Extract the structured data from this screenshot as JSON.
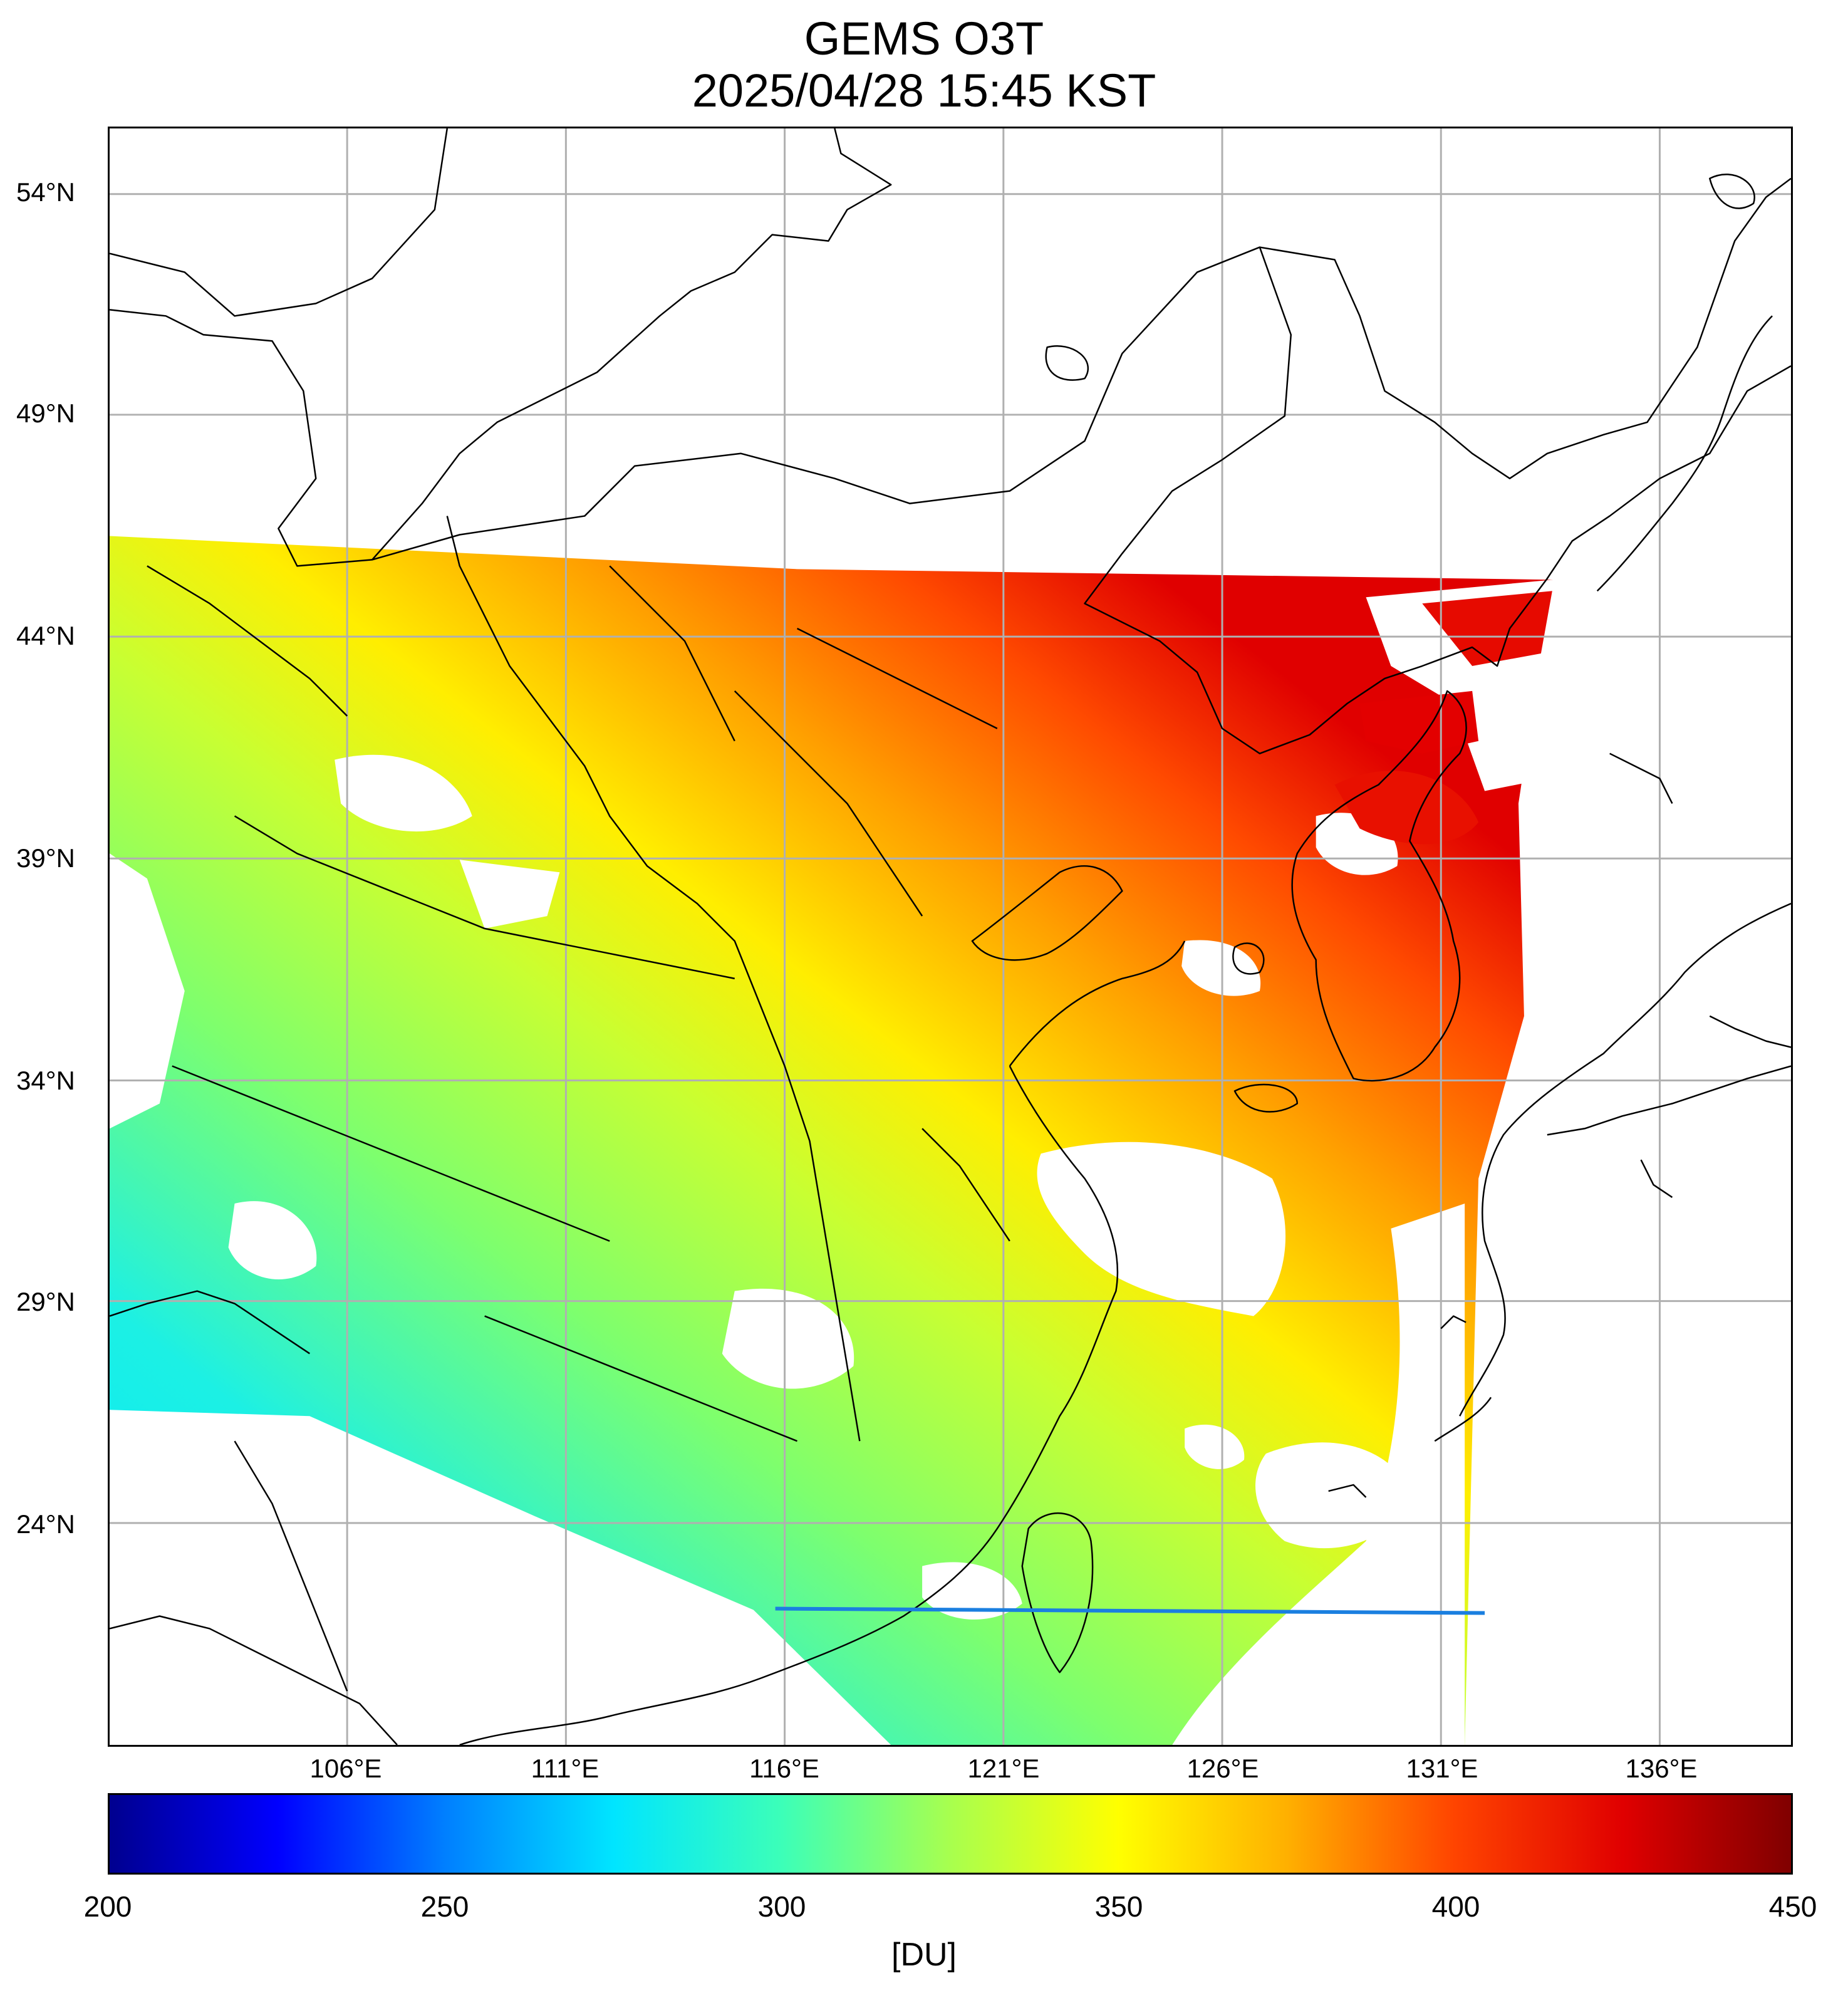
{
  "title_line1": "GEMS O3T",
  "title_line2": "2025/04/28 15:45 KST",
  "lat_labels": [
    "54°N",
    "49°N",
    "44°N",
    "39°N",
    "34°N",
    "29°N",
    "24°N"
  ],
  "lon_labels": [
    "106°E",
    "111°E",
    "116°E",
    "121°E",
    "126°E",
    "131°E",
    "136°E"
  ],
  "colorbar": {
    "ticks": [
      "200",
      "250",
      "300",
      "350",
      "400",
      "450"
    ],
    "unit": "[DU]",
    "min": 200,
    "max": 450,
    "colormap": "jet",
    "colors": [
      "#00008f",
      "#0000ff",
      "#0080ff",
      "#00e5ff",
      "#3cffb8",
      "#a8ff4e",
      "#ffff00",
      "#ffb000",
      "#ff4400",
      "#e00000",
      "#800000"
    ]
  },
  "map": {
    "projection": "lat-lon",
    "lat_range": [
      20.5,
      55.5
    ],
    "lon_range": [
      100.5,
      138.5
    ],
    "grid": true,
    "grid_color": "#b0b0b0",
    "coastline_color": "#000000",
    "no_data_color": "#ffffff"
  }
}
